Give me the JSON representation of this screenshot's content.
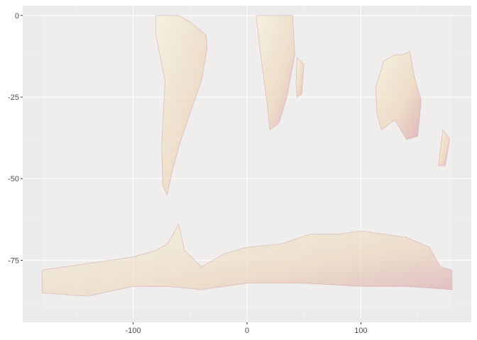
{
  "chart_data": {
    "type": "heatmap",
    "title": "",
    "xlabel": "",
    "ylabel": "",
    "xlim": [
      -197,
      197
    ],
    "ylim": [
      -94,
      3
    ],
    "x_ticks": [
      -100,
      0,
      100
    ],
    "x_tick_labels": [
      "-100",
      "0",
      "100"
    ],
    "y_ticks": [
      0,
      -25,
      -50,
      -75
    ],
    "y_tick_labels": [
      "0",
      "-25",
      "-50",
      "-75"
    ],
    "grid": true,
    "legend": "none",
    "raster_extent": {
      "x": [
        -180,
        180
      ],
      "y": [
        -90,
        0
      ]
    },
    "colors": {
      "panel": "#ebebeb",
      "raster_background": "#efeeec",
      "grid_major": "#ffffff",
      "low": "#f7f1dc",
      "mid": "#ecd8be",
      "high": "#d9a8b0"
    },
    "regions": [
      {
        "name": "South America",
        "polygon": [
          [
            -80,
            0
          ],
          [
            -60,
            0
          ],
          [
            -50,
            -2
          ],
          [
            -36,
            -6
          ],
          [
            -35,
            -10
          ],
          [
            -40,
            -20
          ],
          [
            -48,
            -28
          ],
          [
            -58,
            -38
          ],
          [
            -66,
            -48
          ],
          [
            -70,
            -55
          ],
          [
            -74,
            -52
          ],
          [
            -75,
            -40
          ],
          [
            -72,
            -20
          ],
          [
            -80,
            -6
          ]
        ],
        "level": 0.3
      },
      {
        "name": "Africa",
        "polygon": [
          [
            8,
            0
          ],
          [
            40,
            0
          ],
          [
            42,
            -12
          ],
          [
            35,
            -25
          ],
          [
            28,
            -33
          ],
          [
            20,
            -35
          ],
          [
            18,
            -28
          ],
          [
            12,
            -12
          ],
          [
            9,
            -3
          ]
        ],
        "level": 0.35
      },
      {
        "name": "Madagascar",
        "polygon": [
          [
            44,
            -13
          ],
          [
            50,
            -15
          ],
          [
            48,
            -24
          ],
          [
            44,
            -25
          ],
          [
            43,
            -20
          ]
        ],
        "level": 0.5
      },
      {
        "name": "Australia",
        "polygon": [
          [
            113,
            -22
          ],
          [
            120,
            -14
          ],
          [
            130,
            -12
          ],
          [
            137,
            -12
          ],
          [
            143,
            -11
          ],
          [
            147,
            -19
          ],
          [
            153,
            -26
          ],
          [
            150,
            -37
          ],
          [
            140,
            -38
          ],
          [
            130,
            -32
          ],
          [
            118,
            -35
          ],
          [
            114,
            -30
          ]
        ],
        "level": 0.4
      },
      {
        "name": "New Zealand",
        "polygon": [
          [
            172,
            -35
          ],
          [
            178,
            -38
          ],
          [
            174,
            -46
          ],
          [
            168,
            -46
          ]
        ],
        "level": 0.5
      },
      {
        "name": "Antarctica",
        "polygon": [
          [
            -180,
            -78
          ],
          [
            -160,
            -77
          ],
          [
            -140,
            -76
          ],
          [
            -120,
            -75
          ],
          [
            -100,
            -74
          ],
          [
            -80,
            -72
          ],
          [
            -70,
            -70
          ],
          [
            -60,
            -64
          ],
          [
            -55,
            -72
          ],
          [
            -40,
            -77
          ],
          [
            -20,
            -73
          ],
          [
            0,
            -71
          ],
          [
            30,
            -70
          ],
          [
            55,
            -67
          ],
          [
            80,
            -67
          ],
          [
            100,
            -66
          ],
          [
            120,
            -67
          ],
          [
            140,
            -68
          ],
          [
            160,
            -71
          ],
          [
            170,
            -77
          ],
          [
            180,
            -78
          ],
          [
            180,
            -84
          ],
          [
            140,
            -83
          ],
          [
            100,
            -83
          ],
          [
            50,
            -82
          ],
          [
            0,
            -82
          ],
          [
            -40,
            -84
          ],
          [
            -70,
            -83
          ],
          [
            -100,
            -83
          ],
          [
            -140,
            -86
          ],
          [
            -180,
            -85
          ]
        ],
        "level": 0.25
      }
    ]
  }
}
